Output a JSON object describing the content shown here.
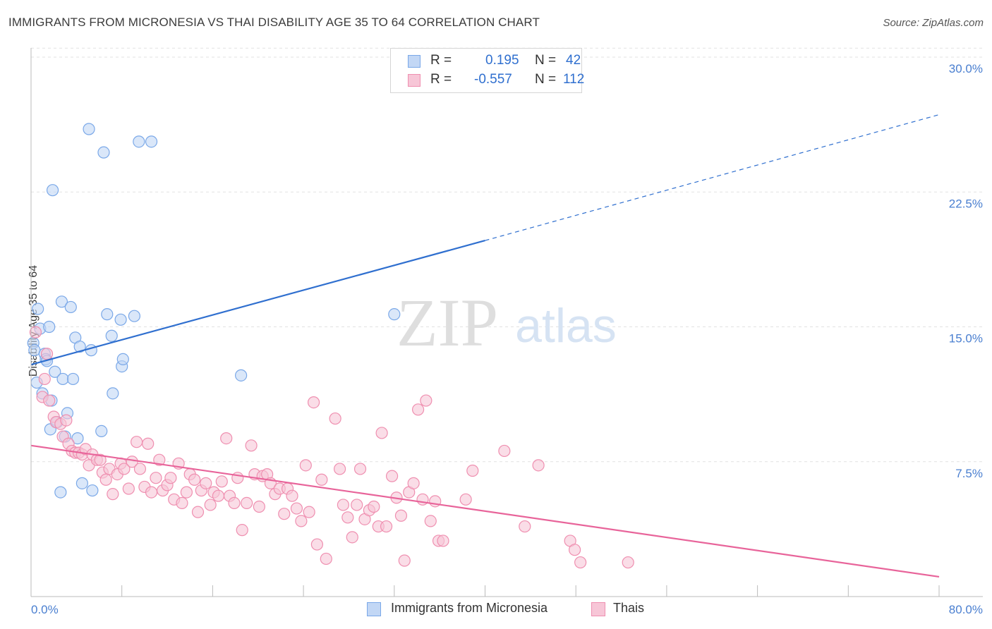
{
  "title": "IMMIGRANTS FROM MICRONESIA VS THAI DISABILITY AGE 35 TO 64 CORRELATION CHART",
  "source": "Source: ZipAtlas.com",
  "watermark": {
    "zip": "ZIP",
    "atlas": "atlas"
  },
  "legend": {
    "r_label": "R =",
    "n_label": "N =",
    "series": [
      {
        "name": "Immigrants from Micronesia",
        "r": "0.195",
        "n": "42",
        "color": "#7aa8e8",
        "fill": "#c2d7f5"
      },
      {
        "name": "Thais",
        "r": "-0.557",
        "n": "112",
        "color": "#ef8fb0",
        "fill": "#f7c6d7"
      }
    ]
  },
  "chart_data": {
    "type": "scatter",
    "title": "IMMIGRANTS FROM MICRONESIA VS THAI DISABILITY AGE 35 TO 64 CORRELATION CHART",
    "xlabel": "",
    "ylabel": "Disability Age 35 to 64",
    "xlim": [
      0,
      80
    ],
    "ylim": [
      0,
      31
    ],
    "x_tick_labels": [
      "0.0%",
      "80.0%"
    ],
    "y_ticks": [
      7.5,
      15.0,
      22.5,
      30.0
    ],
    "y_tick_labels": [
      "7.5%",
      "15.0%",
      "22.5%",
      "30.0%"
    ],
    "grid": true,
    "legend_position": "top-center",
    "series": [
      {
        "name": "Immigrants from Micronesia",
        "color": "#2f6fcf",
        "trend": {
          "x": [
            0,
            40
          ],
          "y": [
            12.9,
            19.8
          ],
          "dashed_to": [
            80,
            26.8
          ]
        },
        "points": [
          [
            0.2,
            14.1
          ],
          [
            0.3,
            13.7
          ],
          [
            0.5,
            11.9
          ],
          [
            0.6,
            16.0
          ],
          [
            0.8,
            14.9
          ],
          [
            1.0,
            11.3
          ],
          [
            1.2,
            13.5
          ],
          [
            1.3,
            13.2
          ],
          [
            1.4,
            13.1
          ],
          [
            1.6,
            15.0
          ],
          [
            1.7,
            9.3
          ],
          [
            1.8,
            10.9
          ],
          [
            1.9,
            22.6
          ],
          [
            2.1,
            12.5
          ],
          [
            2.3,
            9.7
          ],
          [
            2.6,
            5.8
          ],
          [
            2.7,
            16.4
          ],
          [
            2.8,
            12.1
          ],
          [
            3.0,
            8.9
          ],
          [
            3.2,
            10.2
          ],
          [
            3.5,
            16.1
          ],
          [
            3.7,
            12.1
          ],
          [
            3.9,
            14.4
          ],
          [
            4.1,
            8.8
          ],
          [
            4.3,
            13.9
          ],
          [
            4.5,
            6.3
          ],
          [
            5.1,
            26.0
          ],
          [
            5.3,
            13.7
          ],
          [
            5.4,
            5.9
          ],
          [
            6.2,
            9.2
          ],
          [
            6.4,
            24.7
          ],
          [
            6.7,
            15.7
          ],
          [
            7.1,
            14.5
          ],
          [
            7.2,
            11.3
          ],
          [
            7.9,
            15.4
          ],
          [
            8.0,
            12.8
          ],
          [
            8.1,
            13.2
          ],
          [
            9.1,
            15.6
          ],
          [
            9.5,
            25.3
          ],
          [
            10.6,
            25.3
          ],
          [
            18.5,
            12.3
          ],
          [
            32.0,
            15.7
          ]
        ]
      },
      {
        "name": "Thais",
        "color": "#e8649a",
        "trend": {
          "x": [
            0,
            80
          ],
          "y": [
            8.4,
            1.1
          ]
        },
        "points": [
          [
            0.4,
            14.7
          ],
          [
            1.0,
            11.1
          ],
          [
            1.2,
            12.1
          ],
          [
            1.4,
            13.5
          ],
          [
            1.6,
            10.9
          ],
          [
            2.0,
            10.0
          ],
          [
            2.2,
            9.7
          ],
          [
            2.6,
            9.6
          ],
          [
            2.8,
            8.9
          ],
          [
            3.1,
            9.8
          ],
          [
            3.3,
            8.5
          ],
          [
            3.6,
            8.1
          ],
          [
            3.9,
            8.0
          ],
          [
            4.2,
            8.0
          ],
          [
            4.5,
            7.9
          ],
          [
            4.8,
            8.2
          ],
          [
            5.1,
            7.3
          ],
          [
            5.4,
            7.9
          ],
          [
            5.8,
            7.6
          ],
          [
            6.1,
            7.6
          ],
          [
            6.3,
            6.9
          ],
          [
            6.6,
            6.5
          ],
          [
            6.9,
            7.1
          ],
          [
            7.2,
            5.7
          ],
          [
            7.6,
            6.8
          ],
          [
            7.9,
            7.4
          ],
          [
            8.2,
            7.1
          ],
          [
            8.6,
            6.0
          ],
          [
            8.9,
            7.5
          ],
          [
            9.3,
            8.6
          ],
          [
            9.6,
            7.1
          ],
          [
            10.0,
            6.1
          ],
          [
            10.3,
            8.5
          ],
          [
            10.6,
            5.8
          ],
          [
            11.0,
            6.6
          ],
          [
            11.3,
            7.6
          ],
          [
            11.6,
            5.9
          ],
          [
            12.0,
            6.2
          ],
          [
            12.3,
            6.6
          ],
          [
            12.6,
            5.4
          ],
          [
            13.0,
            7.4
          ],
          [
            13.3,
            5.2
          ],
          [
            13.7,
            5.8
          ],
          [
            14.0,
            6.8
          ],
          [
            14.4,
            6.5
          ],
          [
            14.7,
            4.7
          ],
          [
            15.0,
            5.9
          ],
          [
            15.4,
            6.3
          ],
          [
            15.8,
            5.1
          ],
          [
            16.1,
            5.8
          ],
          [
            16.5,
            5.6
          ],
          [
            16.8,
            6.4
          ],
          [
            17.2,
            8.8
          ],
          [
            17.5,
            5.6
          ],
          [
            17.9,
            5.2
          ],
          [
            18.2,
            6.6
          ],
          [
            18.6,
            3.7
          ],
          [
            19.0,
            5.2
          ],
          [
            19.4,
            8.4
          ],
          [
            19.7,
            6.8
          ],
          [
            20.1,
            5.0
          ],
          [
            20.4,
            6.7
          ],
          [
            20.8,
            6.8
          ],
          [
            21.1,
            6.3
          ],
          [
            21.5,
            5.7
          ],
          [
            21.9,
            6.0
          ],
          [
            22.3,
            4.6
          ],
          [
            22.6,
            6.0
          ],
          [
            23.0,
            5.6
          ],
          [
            23.4,
            4.9
          ],
          [
            23.8,
            4.2
          ],
          [
            24.2,
            7.3
          ],
          [
            24.5,
            4.7
          ],
          [
            24.9,
            10.8
          ],
          [
            25.2,
            2.9
          ],
          [
            25.6,
            6.5
          ],
          [
            26.0,
            2.1
          ],
          [
            26.8,
            9.9
          ],
          [
            27.2,
            7.1
          ],
          [
            27.5,
            5.1
          ],
          [
            27.9,
            4.4
          ],
          [
            28.3,
            3.3
          ],
          [
            28.7,
            5.1
          ],
          [
            29.0,
            7.1
          ],
          [
            29.4,
            4.3
          ],
          [
            29.8,
            4.8
          ],
          [
            30.2,
            5.0
          ],
          [
            30.6,
            3.9
          ],
          [
            30.9,
            9.1
          ],
          [
            31.3,
            3.9
          ],
          [
            31.8,
            6.7
          ],
          [
            32.2,
            5.5
          ],
          [
            32.6,
            4.5
          ],
          [
            32.9,
            2.0
          ],
          [
            33.3,
            5.8
          ],
          [
            33.7,
            6.3
          ],
          [
            34.1,
            10.4
          ],
          [
            34.5,
            5.4
          ],
          [
            34.8,
            10.9
          ],
          [
            35.2,
            4.2
          ],
          [
            35.6,
            5.3
          ],
          [
            35.9,
            3.1
          ],
          [
            36.3,
            3.1
          ],
          [
            38.3,
            5.4
          ],
          [
            38.9,
            7.0
          ],
          [
            41.7,
            8.1
          ],
          [
            43.5,
            3.9
          ],
          [
            44.7,
            7.3
          ],
          [
            47.5,
            3.1
          ],
          [
            47.9,
            2.6
          ],
          [
            48.4,
            1.9
          ],
          [
            52.6,
            1.9
          ]
        ]
      }
    ]
  }
}
